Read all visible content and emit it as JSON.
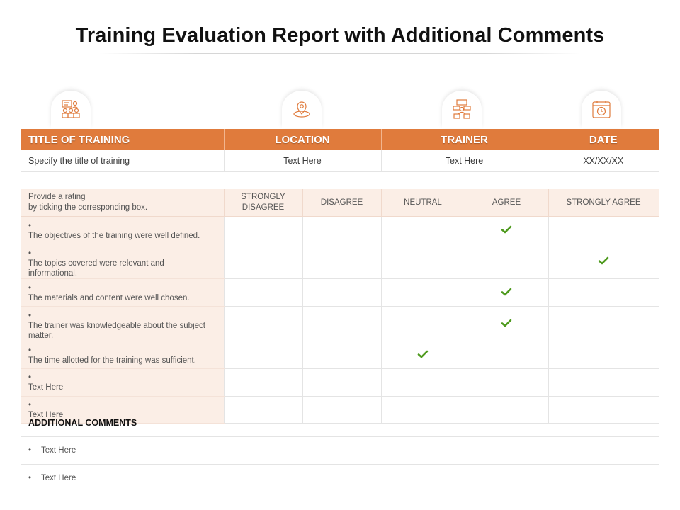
{
  "title": "Training Evaluation Report with Additional Comments",
  "icons": [
    "training-people-icon",
    "location-pin-icon",
    "trainer-icon",
    "calendar-clock-icon"
  ],
  "accent_color": "#e07b3c",
  "check_color": "#4e9a1e",
  "info_table": {
    "headers": [
      "TITLE OF TRAINING",
      "LOCATION",
      "TRAINER",
      "DATE"
    ],
    "values": [
      "Specify  the title of training",
      "Text Here",
      "Text Here",
      "XX/XX/XX"
    ]
  },
  "rating": {
    "instruction": "Provide a rating by ticking the corresponding box.",
    "instruction_line1": "Provide a rating",
    "instruction_line2": "by ticking the corresponding box.",
    "scale": [
      "STRONGLY DISAGREE",
      "DISAGREE",
      "NEUTRAL",
      "AGREE",
      "STRONGLY AGREE"
    ],
    "questions": [
      {
        "text": "The objectives of the training were well defined.",
        "checked": "AGREE"
      },
      {
        "text": "The topics covered were relevant and informational.",
        "checked": "STRONGLY AGREE"
      },
      {
        "text": "The materials and content were well chosen.",
        "checked": "AGREE"
      },
      {
        "text": "The trainer was knowledgeable about the subject matter.",
        "checked": "AGREE"
      },
      {
        "text": "The time allotted for the training was sufficient.",
        "checked": "NEUTRAL"
      },
      {
        "text": "Text Here",
        "checked": null
      },
      {
        "text": "Text Here",
        "checked": null
      }
    ]
  },
  "comments": {
    "heading": "ADDITIONAL COMMENTS",
    "items": [
      "Text Here",
      "Text Here"
    ]
  }
}
